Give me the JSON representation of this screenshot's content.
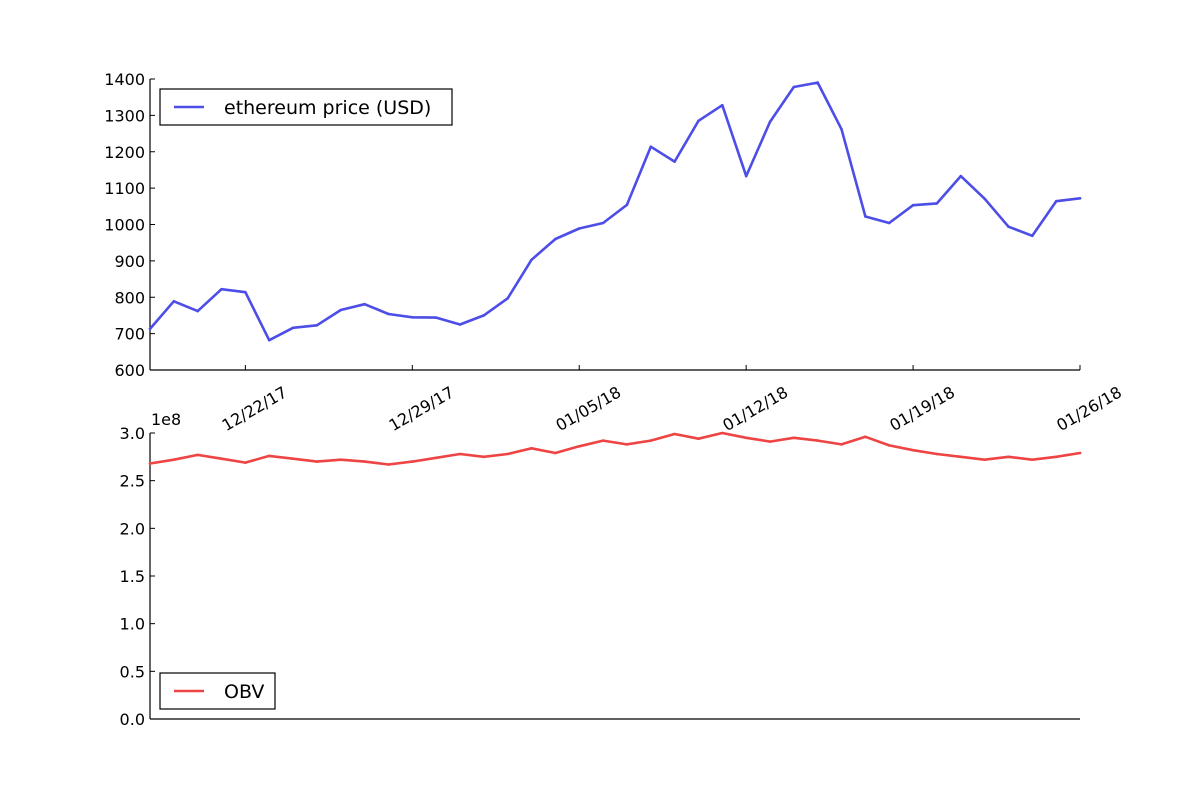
{
  "chart_data": [
    {
      "type": "line",
      "x_axis_type": "date",
      "x": [
        "2017-12-18",
        "2017-12-19",
        "2017-12-20",
        "2017-12-21",
        "2017-12-22",
        "2017-12-23",
        "2017-12-24",
        "2017-12-25",
        "2017-12-26",
        "2017-12-27",
        "2017-12-28",
        "2017-12-29",
        "2017-12-30",
        "2017-12-31",
        "2018-01-01",
        "2018-01-02",
        "2018-01-03",
        "2018-01-04",
        "2018-01-05",
        "2018-01-06",
        "2018-01-07",
        "2018-01-08",
        "2018-01-09",
        "2018-01-10",
        "2018-01-11",
        "2018-01-12",
        "2018-01-13",
        "2018-01-14",
        "2018-01-15",
        "2018-01-16",
        "2018-01-17",
        "2018-01-18",
        "2018-01-19",
        "2018-01-20",
        "2018-01-21",
        "2018-01-22",
        "2018-01-23",
        "2018-01-24",
        "2018-01-25",
        "2018-01-26"
      ],
      "series": [
        {
          "name": "ethereum price (USD)",
          "color": "#4d4de8",
          "values": [
            713,
            789,
            762,
            822,
            814,
            682,
            716,
            723,
            765,
            781,
            754,
            745,
            744,
            725,
            750,
            797,
            903,
            960,
            989,
            1004,
            1054,
            1214,
            1173,
            1285,
            1328,
            1133,
            1282,
            1378,
            1390,
            1262,
            1022,
            1004,
            1053,
            1058,
            1133,
            1071,
            994,
            969,
            1064,
            1072
          ]
        }
      ],
      "x_ticks": [
        {
          "date": "2017-12-22",
          "label": "12/22/17"
        },
        {
          "date": "2017-12-29",
          "label": "12/29/17"
        },
        {
          "date": "2018-01-05",
          "label": "01/05/18"
        },
        {
          "date": "2018-01-12",
          "label": "01/12/18"
        },
        {
          "date": "2018-01-19",
          "label": "01/19/18"
        },
        {
          "date": "2018-01-26",
          "label": "01/26/18"
        }
      ],
      "y_ticks": [
        600,
        700,
        800,
        900,
        1000,
        1100,
        1200,
        1300,
        1400
      ],
      "y_tick_labels": [
        "600",
        "700",
        "800",
        "900",
        "1000",
        "1100",
        "1200",
        "1300",
        "1400"
      ],
      "ylim": [
        600,
        1400
      ],
      "xlim": [
        "2017-12-18",
        "2018-01-26"
      ],
      "grid": false,
      "legend_position": "upper-left",
      "title": "",
      "xlabel": "",
      "ylabel": ""
    },
    {
      "type": "line",
      "x_axis_type": "date",
      "x": [
        "2017-12-18",
        "2017-12-19",
        "2017-12-20",
        "2017-12-21",
        "2017-12-22",
        "2017-12-23",
        "2017-12-24",
        "2017-12-25",
        "2017-12-26",
        "2017-12-27",
        "2017-12-28",
        "2017-12-29",
        "2017-12-30",
        "2017-12-31",
        "2018-01-01",
        "2018-01-02",
        "2018-01-03",
        "2018-01-04",
        "2018-01-05",
        "2018-01-06",
        "2018-01-07",
        "2018-01-08",
        "2018-01-09",
        "2018-01-10",
        "2018-01-11",
        "2018-01-12",
        "2018-01-13",
        "2018-01-14",
        "2018-01-15",
        "2018-01-16",
        "2018-01-17",
        "2018-01-18",
        "2018-01-19",
        "2018-01-20",
        "2018-01-21",
        "2018-01-22",
        "2018-01-23",
        "2018-01-24",
        "2018-01-25",
        "2018-01-26"
      ],
      "series": [
        {
          "name": "OBV",
          "color": "#ee4444",
          "values": [
            268000000,
            272000000,
            277000000,
            273000000,
            269000000,
            276000000,
            273000000,
            270000000,
            272000000,
            270000000,
            267000000,
            270000000,
            274000000,
            278000000,
            275000000,
            278000000,
            284000000,
            279000000,
            286000000,
            292000000,
            288000000,
            292000000,
            299000000,
            294000000,
            300000000,
            295000000,
            291000000,
            295000000,
            292000000,
            288000000,
            296000000,
            287000000,
            282000000,
            278000000,
            275000000,
            272000000,
            275000000,
            272000000,
            275000000,
            279000000
          ]
        }
      ],
      "y_ticks": [
        0,
        50000000,
        100000000,
        150000000,
        200000000,
        250000000,
        300000000
      ],
      "y_tick_labels": [
        "0.0",
        "0.5",
        "1.0",
        "1.5",
        "2.0",
        "2.5",
        "3.0"
      ],
      "y_offset_label": "1e8",
      "ylim": [
        0,
        300000000
      ],
      "xlim": [
        "2017-12-18",
        "2018-01-26"
      ],
      "grid": false,
      "legend_position": "lower-left",
      "title": "",
      "xlabel": "",
      "ylabel": ""
    }
  ]
}
